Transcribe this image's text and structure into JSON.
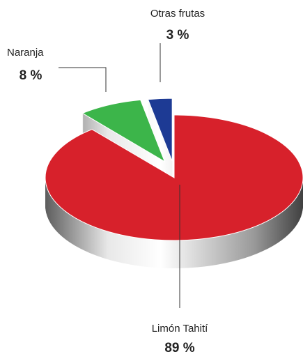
{
  "chart_data": {
    "type": "pie",
    "categories": [
      "Limón Tahití",
      "Naranja",
      "Otras frutas"
    ],
    "values": [
      89,
      8,
      3
    ],
    "value_labels": [
      "89 %",
      "8 %",
      "3 %"
    ],
    "colors": [
      "#d7212b",
      "#3cb54a",
      "#1d3a94"
    ]
  }
}
